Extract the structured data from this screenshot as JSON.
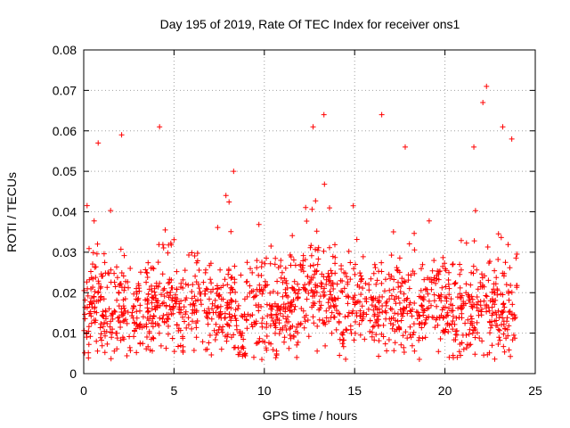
{
  "chart_data": {
    "type": "scatter",
    "title": "Day 195 of 2019, Rate Of TEC Index for receiver ons1",
    "xlabel": "GPS time / hours",
    "ylabel": "ROTI / TECUs",
    "xlim": [
      0,
      25
    ],
    "ylim": [
      0,
      0.08
    ],
    "x_ticks": [
      0,
      5,
      10,
      15,
      20,
      25
    ],
    "x_tick_labels": [
      "0",
      "5",
      "10",
      "15",
      "20",
      "25"
    ],
    "y_ticks": [
      0,
      0.01,
      0.02,
      0.03,
      0.04,
      0.05,
      0.06,
      0.07,
      0.08
    ],
    "y_tick_labels": [
      "0",
      "0.01",
      "0.02",
      "0.03",
      "0.04",
      "0.05",
      "0.06",
      "0.07",
      "0.08"
    ],
    "grid": true,
    "marker": "+",
    "color": "#ff0000",
    "series": [
      {
        "name": "ROTI",
        "x_range": [
          0,
          24
        ],
        "points_generated": 9000,
        "typical_band": [
          0.005,
          0.03
        ],
        "dense_median": 0.016,
        "notable_peaks": [
          {
            "x": 0.8,
            "y": 0.057
          },
          {
            "x": 2.1,
            "y": 0.059
          },
          {
            "x": 4.2,
            "y": 0.061
          },
          {
            "x": 12.7,
            "y": 0.061
          },
          {
            "x": 13.3,
            "y": 0.064
          },
          {
            "x": 16.5,
            "y": 0.064
          },
          {
            "x": 22.3,
            "y": 0.071
          },
          {
            "x": 22.1,
            "y": 0.067
          },
          {
            "x": 23.2,
            "y": 0.061
          },
          {
            "x": 23.7,
            "y": 0.058
          },
          {
            "x": 17.8,
            "y": 0.056
          },
          {
            "x": 21.6,
            "y": 0.056
          },
          {
            "x": 8.3,
            "y": 0.05
          }
        ]
      }
    ]
  }
}
